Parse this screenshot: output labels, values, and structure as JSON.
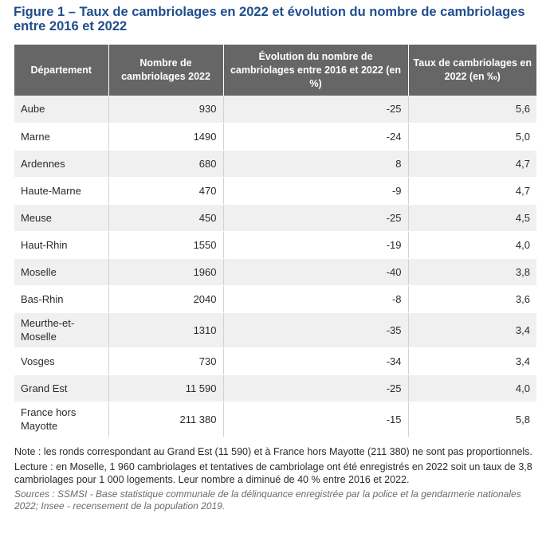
{
  "figure": {
    "title": "Figure 1 – Taux de cambriolages en 2022 et évolution du nombre de cambriolages entre 2016 et 2022"
  },
  "chart_data": {
    "type": "table",
    "title": "Figure 1 – Taux de cambriolages en 2022 et évolution du nombre de cambriolages entre 2016 et 2022",
    "columns": [
      "Département",
      "Nombre de cambriolages 2022",
      "Évolution du nombre de cambriolages entre 2016 et 2022 (en %)",
      "Taux de cambriolages en 2022 (en ‰)"
    ],
    "rows": [
      {
        "departement": "Aube",
        "nombre": "930",
        "evolution": "-25",
        "taux": "5,6"
      },
      {
        "departement": "Marne",
        "nombre": "1490",
        "evolution": "-24",
        "taux": "5,0"
      },
      {
        "departement": "Ardennes",
        "nombre": "680",
        "evolution": "8",
        "taux": "4,7"
      },
      {
        "departement": "Haute-Marne",
        "nombre": "470",
        "evolution": "-9",
        "taux": "4,7"
      },
      {
        "departement": "Meuse",
        "nombre": "450",
        "evolution": "-25",
        "taux": "4,5"
      },
      {
        "departement": "Haut-Rhin",
        "nombre": "1550",
        "evolution": "-19",
        "taux": "4,0"
      },
      {
        "departement": "Moselle",
        "nombre": "1960",
        "evolution": "-40",
        "taux": "3,8"
      },
      {
        "departement": "Bas-Rhin",
        "nombre": "2040",
        "evolution": "-8",
        "taux": "3,6"
      },
      {
        "departement": "Meurthe-et-Moselle",
        "nombre": "1310",
        "evolution": "-35",
        "taux": "3,4"
      },
      {
        "departement": "Vosges",
        "nombre": "730",
        "evolution": "-34",
        "taux": "3,4"
      },
      {
        "departement": "Grand Est",
        "nombre": "11 590",
        "evolution": "-25",
        "taux": "4,0"
      },
      {
        "departement": "France hors Mayotte",
        "nombre": "211 380",
        "evolution": "-15",
        "taux": "5,8"
      }
    ]
  },
  "notes": {
    "note": "Note : les ronds correspondant au Grand Est (11 590) et à France hors Mayotte (211 380) ne sont pas proportionnels.",
    "lecture": "Lecture : en Moselle, 1 960 cambriolages et tentatives de cambriolage ont été enregistrés en 2022 soit un taux de 3,8 cambriolages pour 1 000 logements. Leur nombre a diminué de 40 % entre 2016 et 2022.",
    "sources": "Sources : SSMSI - Base statistique communale de la délinquance enregistrée par la police et la gendarmerie nationales 2022; Insee - recensement de la population 2019."
  }
}
